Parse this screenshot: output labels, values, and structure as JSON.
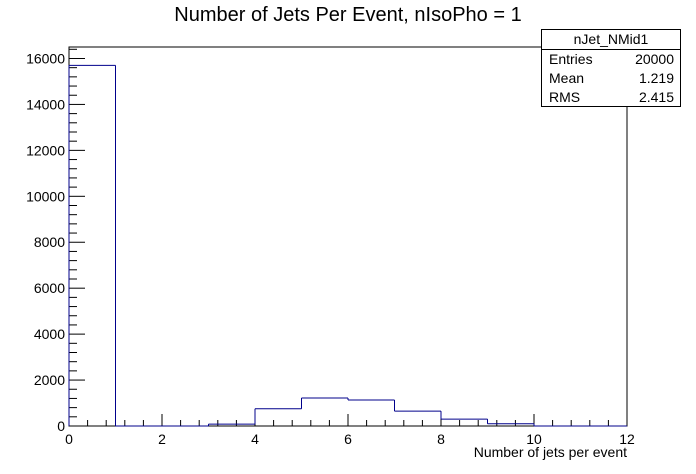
{
  "chart_data": {
    "type": "bar",
    "title": "Number of Jets Per Event, nIsoPho = 1",
    "xlabel": "Number of jets per event",
    "ylabel": "",
    "xlim": [
      0,
      12
    ],
    "ylim": [
      0,
      16500
    ],
    "x_ticks": [
      0,
      2,
      4,
      6,
      8,
      10,
      12
    ],
    "y_ticks": [
      0,
      2000,
      4000,
      6000,
      8000,
      10000,
      12000,
      14000,
      16000
    ],
    "bin_edges": [
      0,
      1,
      2,
      3,
      4,
      5,
      6,
      7,
      8,
      9,
      10,
      11,
      12
    ],
    "values": [
      15700,
      0,
      0,
      80,
      750,
      1220,
      1130,
      650,
      300,
      100,
      0,
      0
    ],
    "line_color": "#00008b",
    "grid": false
  },
  "stats": {
    "name": "nJet_NMid1",
    "entries_label": "Entries",
    "entries": "20000",
    "mean_label": "Mean",
    "mean": "1.219",
    "rms_label": "RMS",
    "rms": "2.415"
  }
}
